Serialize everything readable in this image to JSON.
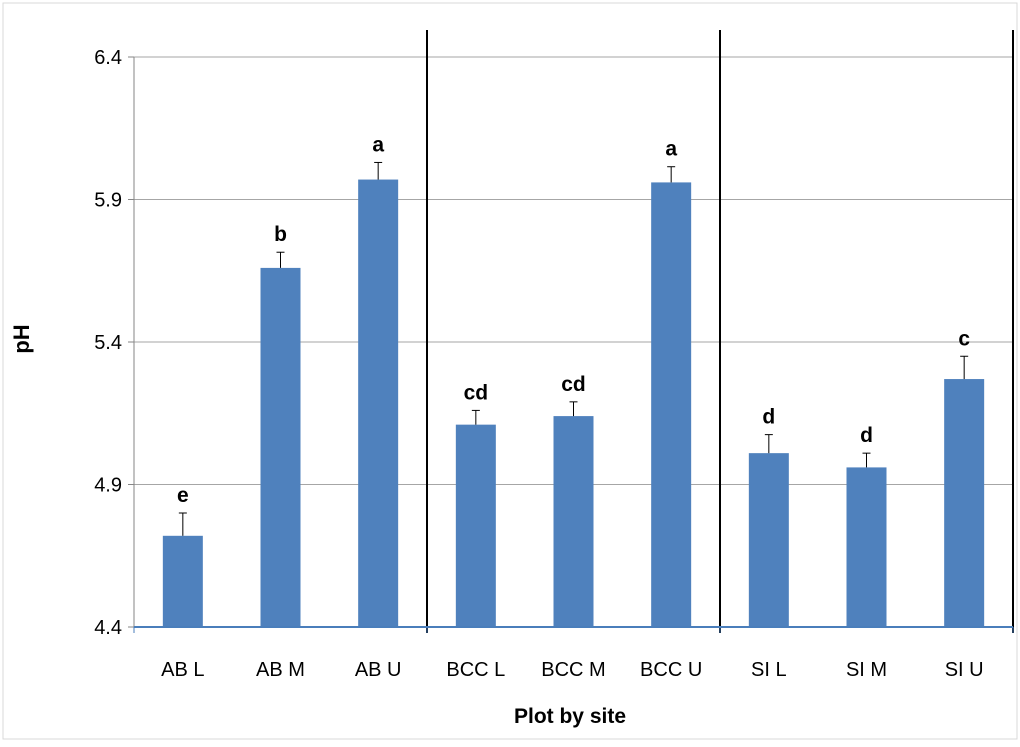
{
  "chart_data": {
    "type": "bar",
    "title": "",
    "xlabel": "Plot by site",
    "ylabel": "pH",
    "ylim": [
      4.4,
      6.4
    ],
    "yticks": [
      "4.4",
      "4.9",
      "5.4",
      "5.9",
      "6.4"
    ],
    "categories": [
      "AB L",
      "AB M",
      "AB U",
      "BCC L",
      "BCC M",
      "BCC U",
      "SI L",
      "SI M",
      "SI U"
    ],
    "values": [
      4.72,
      5.66,
      5.97,
      5.11,
      5.14,
      5.96,
      5.01,
      4.96,
      5.27
    ],
    "errors": [
      0.08,
      0.055,
      0.06,
      0.05,
      0.05,
      0.055,
      0.065,
      0.05,
      0.08
    ],
    "significance_letters": [
      "e",
      "b",
      "a",
      "cd",
      "cd",
      "a",
      "d",
      "d",
      "c"
    ],
    "groups": [
      {
        "name": "AB",
        "start": 0,
        "end": 2
      },
      {
        "name": "BCC",
        "start": 3,
        "end": 5
      },
      {
        "name": "SI",
        "start": 6,
        "end": 8
      }
    ],
    "bar_color": "#4f81bd",
    "grid": true,
    "legend": "none"
  }
}
